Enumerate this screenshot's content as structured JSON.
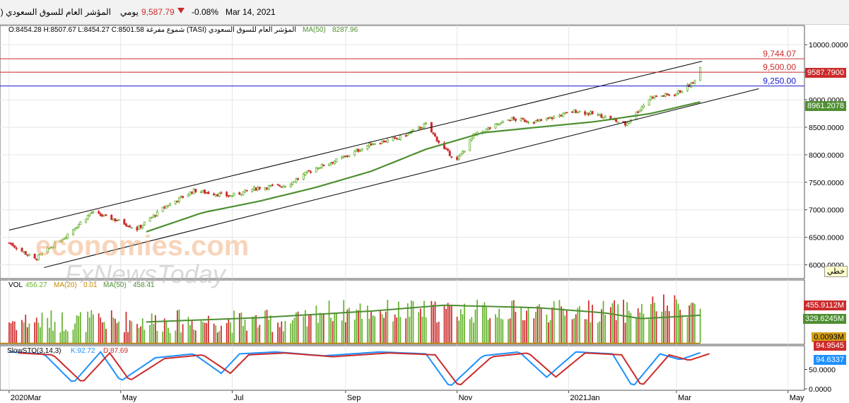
{
  "header": {
    "title": "المؤشر العام للسوق السعودي (TASI)",
    "period": "يومي",
    "price": "9,587.79",
    "change": "-0.08%",
    "date": "Mar 14, 2021"
  },
  "legend": {
    "main": "المؤشر العام للسوق السعودي (TASI) شموع مفرغة O:8454.28 H:8507.67 L:8454.27 C:8501.58",
    "ma_label": "MA(50)",
    "ma_value": "8287.96",
    "vol": "VOL",
    "vol_value": "456.27",
    "vol_ma20": "MA(20)",
    "vol_ma20_value": "0.01",
    "vol_ma50": "MA(50)",
    "vol_ma50_value": "458.41",
    "stoch": "SlowSTO(3,14,3)",
    "stoch_k": "K:92.72",
    "stoch_d": "D:87.69"
  },
  "tags": {
    "price": "9587.7900",
    "ma": "8961.2078",
    "line_label": "خطي",
    "vol_a": "455.9112M",
    "vol_b": "329.6245M",
    "vol_c": "0.0093M",
    "stoch_a": "94.9545",
    "stoch_b": "94.6337"
  },
  "watermark": {
    "line1": "economies.com",
    "line2": "FxNewsToday"
  },
  "colors": {
    "up": "#66b22e",
    "down": "#cc2b2b",
    "ma": "#4f8f32",
    "blue": "#1717cc",
    "red": "#cc2b2b",
    "stoch_k": "#1e90ff"
  },
  "chart_data": {
    "type": "candlestick",
    "x_ticks": [
      "2020Mar",
      "May",
      "Jul",
      "Sep",
      "Nov",
      "2021Jan",
      "Mar",
      "May"
    ],
    "y_ticks": [
      "10000.0000",
      "9500.0000",
      "9000.0000",
      "8500.0000",
      "8000.0000",
      "7500.0000",
      "7000.0000",
      "6500.0000",
      "6000.0000"
    ],
    "y_ticks_values": [
      10000,
      9500,
      9000,
      8500,
      8000,
      7500,
      7000,
      6500,
      6000
    ],
    "ylim": [
      5750,
      10350
    ],
    "horizontal_levels": [
      {
        "label": "9,744.07",
        "value": 9744.07,
        "color": "#cc2b2b"
      },
      {
        "label": "9,500.00",
        "value": 9500,
        "color": "#cc2b2b"
      },
      {
        "label": "9,250.00",
        "value": 9250,
        "color": "#1717cc"
      }
    ],
    "channel": {
      "upper": [
        [
          "2020-03-01",
          6630
        ],
        [
          "2021-03-15",
          9700
        ]
      ],
      "lower": [
        [
          "2020-03-20",
          5950
        ],
        [
          "2021-04-15",
          9200
        ]
      ]
    },
    "close_keypoints": [
      [
        "2020-03-01",
        6400
      ],
      [
        "2020-03-15",
        6100
      ],
      [
        "2020-03-31",
        6500
      ],
      [
        "2020-04-15",
        6950
      ],
      [
        "2020-04-30",
        6800
      ],
      [
        "2020-05-10",
        6650
      ],
      [
        "2020-05-25",
        7050
      ],
      [
        "2020-06-10",
        7350
      ],
      [
        "2020-06-30",
        7250
      ],
      [
        "2020-07-15",
        7400
      ],
      [
        "2020-07-31",
        7450
      ],
      [
        "2020-08-15",
        7750
      ],
      [
        "2020-08-31",
        7950
      ],
      [
        "2020-09-15",
        8200
      ],
      [
        "2020-09-30",
        8300
      ],
      [
        "2020-10-15",
        8550
      ],
      [
        "2020-10-25",
        8100
      ],
      [
        "2020-11-01",
        7900
      ],
      [
        "2020-11-10",
        8350
      ],
      [
        "2020-11-30",
        8650
      ],
      [
        "2020-12-15",
        8600
      ],
      [
        "2021-01-05",
        8800
      ],
      [
        "2021-01-20",
        8700
      ],
      [
        "2021-02-01",
        8550
      ],
      [
        "2021-02-15",
        9050
      ],
      [
        "2021-02-28",
        9100
      ],
      [
        "2021-03-10",
        9300
      ],
      [
        "2021-03-14",
        9588
      ]
    ],
    "ma50_keypoints": [
      [
        "2020-05-15",
        6600
      ],
      [
        "2020-06-15",
        6950
      ],
      [
        "2020-07-15",
        7150
      ],
      [
        "2020-08-15",
        7400
      ],
      [
        "2020-09-15",
        7700
      ],
      [
        "2020-10-15",
        8100
      ],
      [
        "2020-11-15",
        8400
      ],
      [
        "2020-12-15",
        8500
      ],
      [
        "2021-01-15",
        8600
      ],
      [
        "2021-02-15",
        8750
      ],
      [
        "2021-03-14",
        8960
      ]
    ],
    "volume_ma_keypoints": [
      [
        "2020-05-15",
        250
      ],
      [
        "2020-07-15",
        300
      ],
      [
        "2020-09-15",
        380
      ],
      [
        "2020-10-25",
        450
      ],
      [
        "2020-12-15",
        420
      ],
      [
        "2021-01-20",
        360
      ],
      [
        "2021-02-10",
        290
      ],
      [
        "2021-03-14",
        330
      ]
    ],
    "stoch_k_keypoints": [
      [
        "2020-03-01",
        95
      ],
      [
        "2020-03-20",
        90
      ],
      [
        "2020-04-05",
        15
      ],
      [
        "2020-04-20",
        95
      ],
      [
        "2020-05-01",
        20
      ],
      [
        "2020-05-20",
        80
      ],
      [
        "2020-06-10",
        90
      ],
      [
        "2020-06-25",
        40
      ],
      [
        "2020-07-05",
        90
      ],
      [
        "2020-07-25",
        95
      ],
      [
        "2020-08-20",
        85
      ],
      [
        "2020-09-20",
        95
      ],
      [
        "2020-10-15",
        90
      ],
      [
        "2020-10-28",
        5
      ],
      [
        "2020-11-15",
        85
      ],
      [
        "2020-12-05",
        95
      ],
      [
        "2020-12-20",
        30
      ],
      [
        "2021-01-05",
        95
      ],
      [
        "2021-01-25",
        90
      ],
      [
        "2021-02-05",
        5
      ],
      [
        "2021-02-20",
        90
      ],
      [
        "2021-03-03",
        75
      ],
      [
        "2021-03-14",
        93
      ]
    ]
  }
}
